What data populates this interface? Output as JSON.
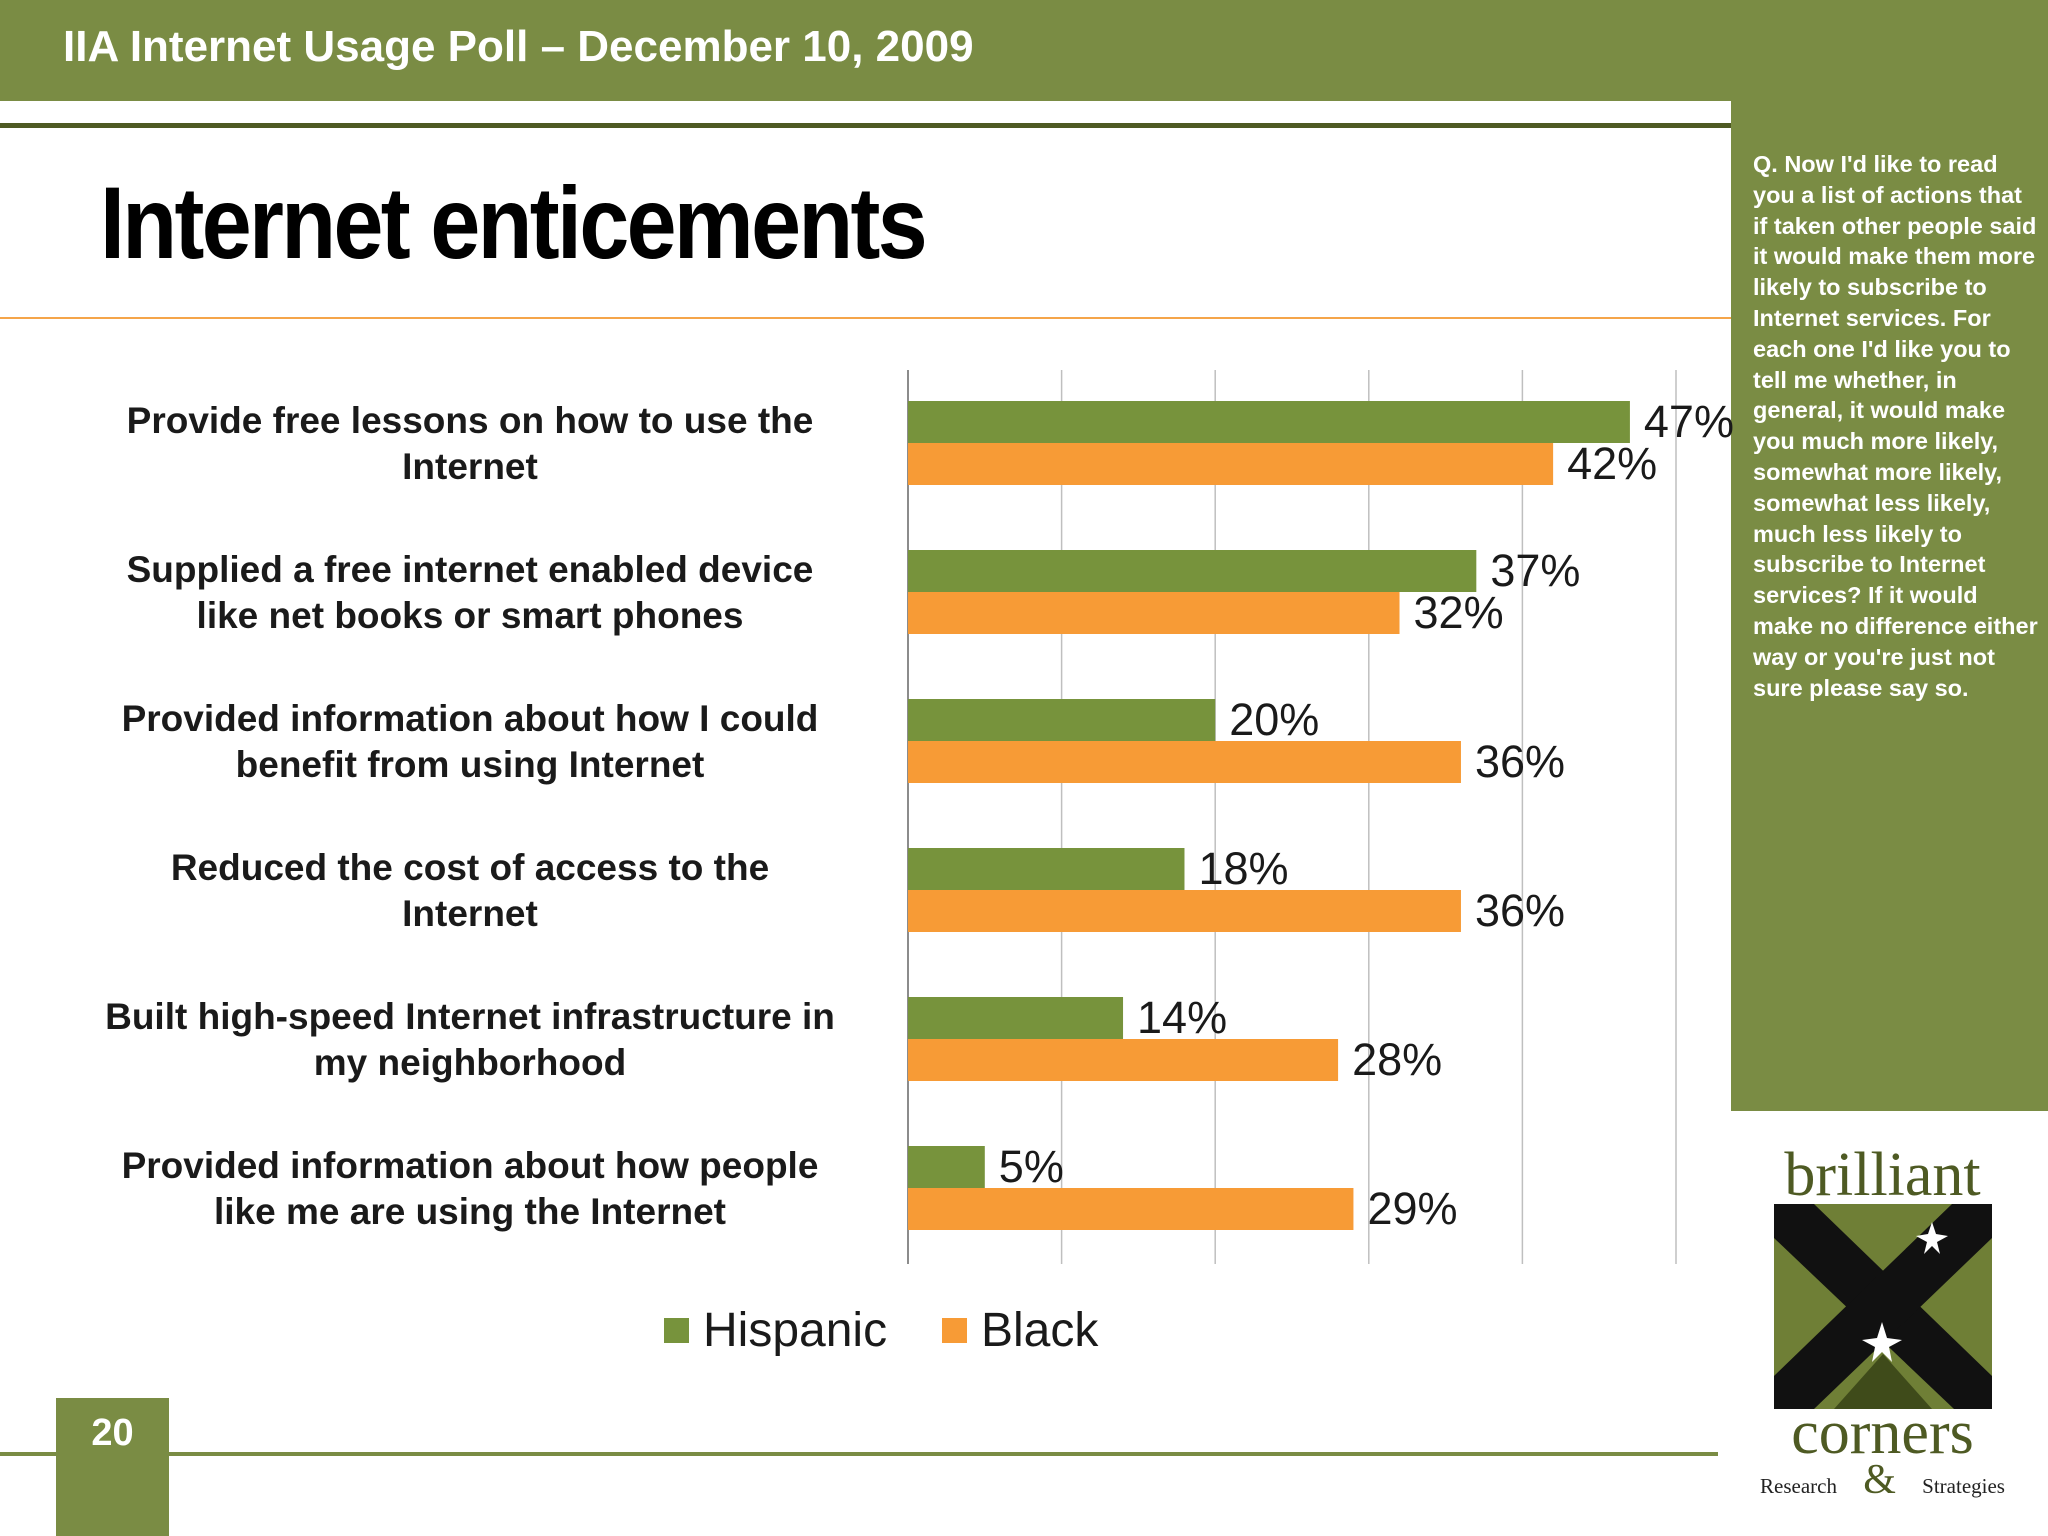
{
  "header": {
    "title": "IIA Internet Usage Poll – December 10, 2009"
  },
  "page_title": "Internet enticements",
  "side_panel": {
    "question": "Q. Now I'd like to read you a list of actions that if taken other people said it would make them more likely to subscribe to Internet services.  For each one I'd like you to tell me whether, in general, it would make you much more likely, somewhat more likely, somewhat less likely, much less likely to subscribe to Internet services? If it would make no difference either way or you're just not sure please say so."
  },
  "colors": {
    "hispanic": "#77933c",
    "black": "#f79b36",
    "band": "#7a8c44",
    "grid": "#bfbfbf"
  },
  "chart_data": {
    "type": "bar",
    "orientation": "horizontal",
    "categories": [
      "Provide free lessons on how to use the Internet",
      "Supplied a free internet enabled device like net books or smart phones",
      "Provided information about how I could benefit from using Internet",
      "Reduced the cost of access to the Internet",
      "Built high-speed Internet infrastructure in my neighborhood",
      "Provided information about how people like me are using the Internet"
    ],
    "category_lines": [
      [
        "Provide free lessons on how to use the",
        "Internet"
      ],
      [
        "Supplied a free internet enabled device",
        "like net books or smart phones"
      ],
      [
        "Provided information about how I could",
        "benefit from using Internet"
      ],
      [
        "Reduced the cost of access to the",
        "Internet"
      ],
      [
        "Built high-speed Internet infrastructure in",
        "my neighborhood"
      ],
      [
        "Provided information about how people",
        "like me are using the Internet"
      ]
    ],
    "series": [
      {
        "name": "Hispanic",
        "values": [
          47,
          37,
          20,
          18,
          14,
          5
        ],
        "labels": [
          "47%",
          "37%",
          "20%",
          "18%",
          "14%",
          "5%"
        ]
      },
      {
        "name": "Black",
        "values": [
          42,
          32,
          36,
          36,
          28,
          29
        ],
        "labels": [
          "42%",
          "32%",
          "36%",
          "36%",
          "28%",
          "29%"
        ]
      }
    ],
    "xlim": [
      0,
      50
    ],
    "grid": true,
    "legend_position": "bottom"
  },
  "logo": {
    "top": "brilliant",
    "bottom": "corners",
    "sub_left": "Research",
    "sub_amp": "&",
    "sub_right": "Strategies"
  },
  "page_number": "20"
}
